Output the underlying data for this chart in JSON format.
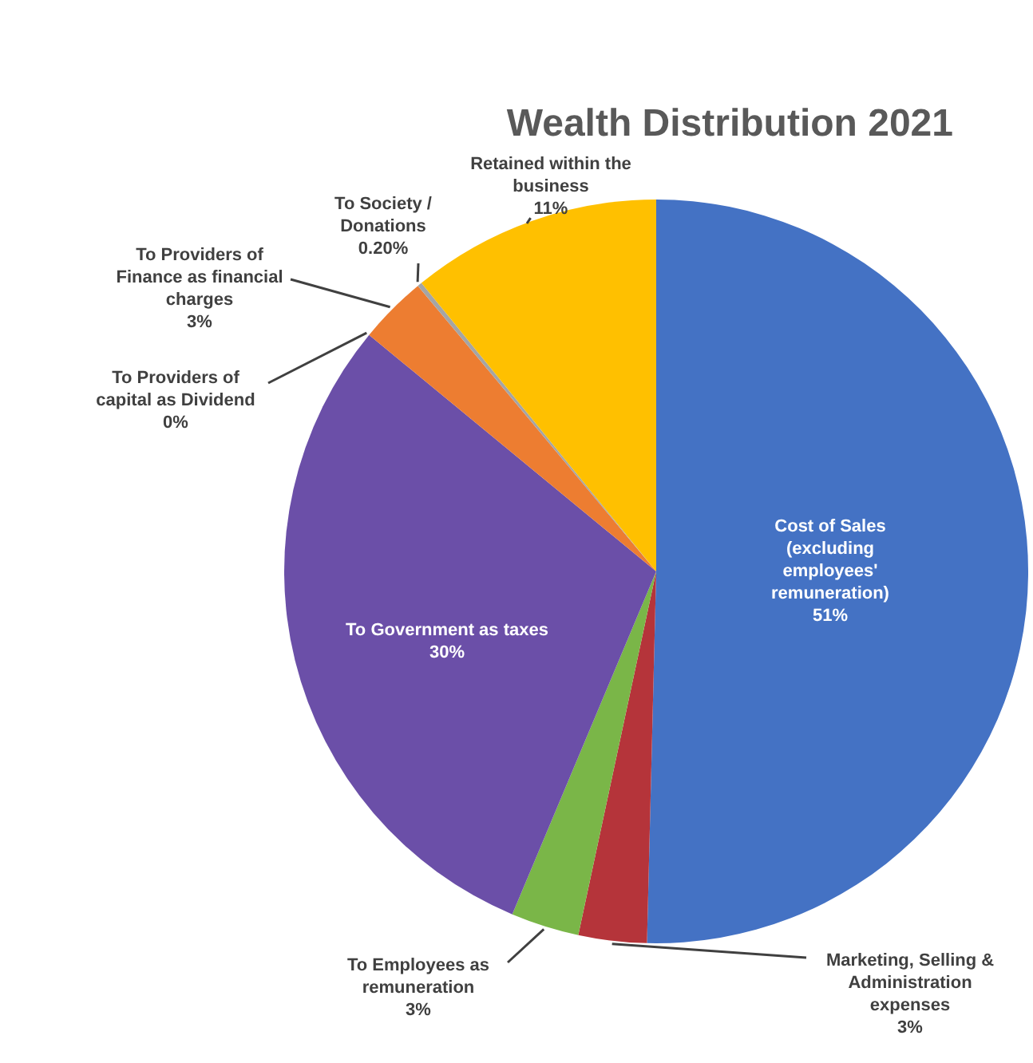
{
  "chart_data": {
    "type": "pie",
    "title": "Wealth Distribution 2021",
    "categories": [
      "Cost of Sales (excluding employees' remuneration)",
      "Marketing, Selling & Administration expenses",
      "To Employees as remuneration",
      "To Government as taxes",
      "To Providers of capital as Dividend",
      "To Providers of Finance as financial charges",
      "To Society / Donations",
      "Retained within the business"
    ],
    "values": [
      51,
      3,
      3,
      30,
      0,
      3,
      0.2,
      11
    ],
    "value_labels": [
      "51%",
      "3%",
      "3%",
      "30%",
      "0%",
      "3%",
      "0.20%",
      "11%"
    ],
    "colors": [
      "#4472c4",
      "#b5343a",
      "#7ab648",
      "#6b4fa8",
      "#5b9bd5",
      "#ed7d31",
      "#a5a5a5",
      "#ffc000"
    ],
    "legend": false
  }
}
